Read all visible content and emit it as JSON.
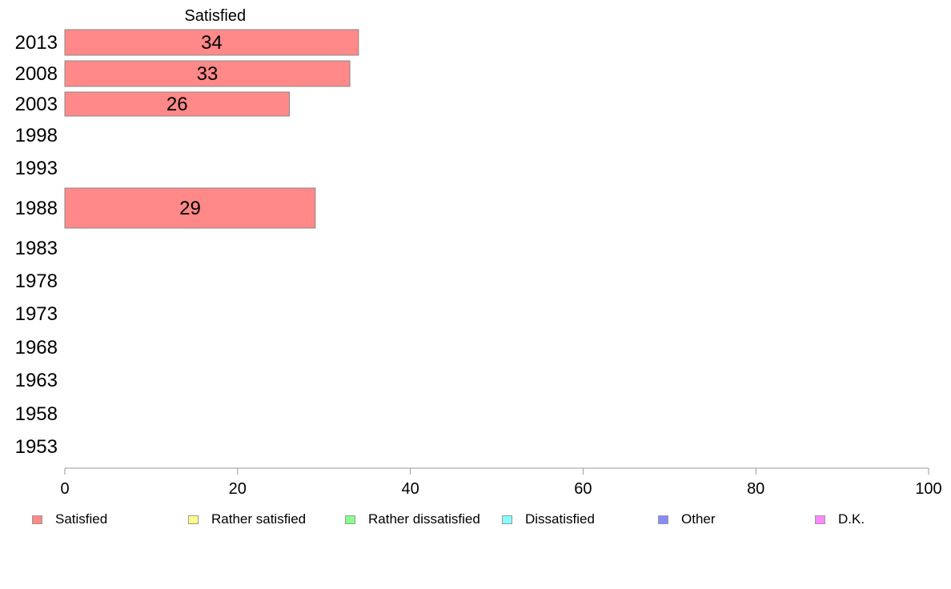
{
  "chart_data": {
    "type": "bar",
    "orientation": "horizontal",
    "categories": [
      "2013",
      "2008",
      "2003",
      "1998",
      "1993",
      "1988",
      "1983",
      "1978",
      "1973",
      "1968",
      "1963",
      "1958",
      "1953"
    ],
    "series": [
      {
        "name": "Satisfied",
        "color": "#ff8888",
        "values": [
          34,
          33,
          26,
          null,
          null,
          29,
          null,
          null,
          null,
          null,
          null,
          null,
          null
        ]
      }
    ],
    "series_title": "Satisfied",
    "xlim": [
      0,
      100
    ],
    "xticks": [
      "0",
      "20",
      "40",
      "60",
      "80",
      "100"
    ],
    "grid": false,
    "legend_position": "bottom",
    "legend": [
      {
        "label": "Satisfied",
        "color": "#ff8888"
      },
      {
        "label": "Rather satisfied",
        "color": "#ffff88"
      },
      {
        "label": "Rather dissatisfied",
        "color": "#88ff88"
      },
      {
        "label": "Dissatisfied",
        "color": "#88ffff"
      },
      {
        "label": "Other",
        "color": "#8888ff"
      },
      {
        "label": "D.K.",
        "color": "#ff88ff"
      }
    ]
  }
}
